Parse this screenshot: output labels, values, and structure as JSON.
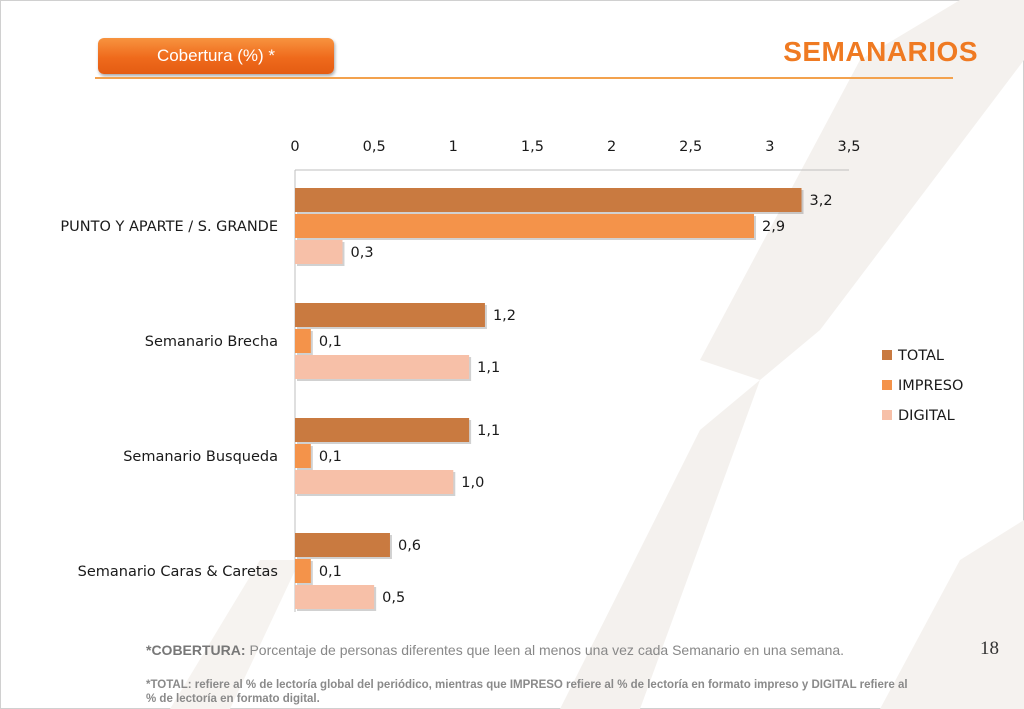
{
  "header": {
    "tag_label": "Cobertura (%) *",
    "title": "SEMANARIOS"
  },
  "page_number": "18",
  "footnotes": {
    "cobertura_term": "*COBERTURA:",
    "cobertura_text": "Porcentaje de personas diferentes que leen al menos una vez cada Semanario en una semana.",
    "total_note": "*TOTAL: refiere al % de lectoría global del periódico, mientras que IMPRESO refiere al % de lectoría en formato impreso y DIGITAL refiere al % de lectoría en formato digital."
  },
  "colors": {
    "accent": "#ef7a22",
    "total": "#c97a40",
    "impreso": "#f4934a",
    "digital": "#f7c0a8"
  },
  "chart_data": {
    "type": "bar",
    "orientation": "horizontal",
    "categories": [
      "PUNTO Y APARTE / S. GRANDE",
      "Semanario Brecha",
      "Semanario Busqueda",
      "Semanario Caras & Caretas"
    ],
    "series": [
      {
        "name": "TOTAL",
        "values": [
          3.2,
          1.2,
          1.1,
          0.6
        ],
        "labels": [
          "3,2",
          "1,2",
          "1,1",
          "0,6"
        ]
      },
      {
        "name": "IMPRESO",
        "values": [
          2.9,
          0.1,
          0.1,
          0.1
        ],
        "labels": [
          "2,9",
          "0,1",
          "0,1",
          "0,1"
        ]
      },
      {
        "name": "DIGITAL",
        "values": [
          0.3,
          1.1,
          1.0,
          0.5
        ],
        "labels": [
          "0,3",
          "1,1",
          "1,0",
          "0,5"
        ]
      }
    ],
    "xlim": [
      0,
      3.5
    ],
    "xticks": [
      0,
      0.5,
      1,
      1.5,
      2,
      2.5,
      3,
      3.5
    ],
    "xtick_labels": [
      "0",
      "0,5",
      "1",
      "1,5",
      "2",
      "2,5",
      "3",
      "3,5"
    ],
    "axis_position": "top",
    "legend": "right",
    "grid": false
  }
}
